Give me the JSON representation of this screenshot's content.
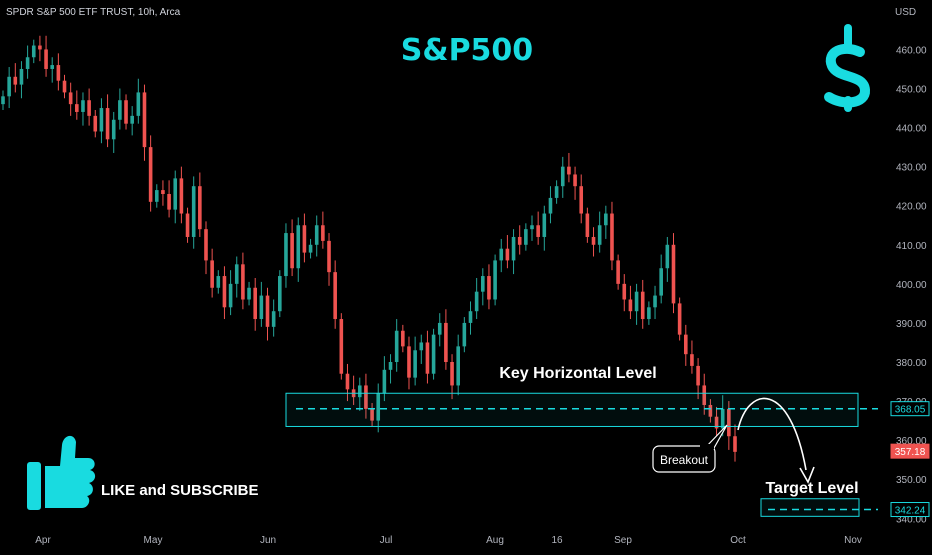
{
  "header": {
    "symbol": "SPDR S&P 500 ETF TRUST, 10h, Arca",
    "currency": "USD"
  },
  "title": "S&P500",
  "annotations": {
    "key_level_label": "Key Horizontal Level",
    "target_label": "Target Level",
    "breakout_label": "Breakout",
    "cta_label": "LIKE and SUBSCRIBE"
  },
  "icons": {
    "dollar": "dollar-icon",
    "thumbs_up": "thumbs-up-icon"
  },
  "colors": {
    "up": "#26a69a",
    "down": "#ef5350",
    "accent": "#19dbe0",
    "background": "#000000",
    "axis_text": "#b2b5be"
  },
  "chart_data": {
    "type": "candlestick",
    "ylim": [
      337,
      466
    ],
    "y_ticks": [
      "460.00",
      "450.00",
      "440.00",
      "430.00",
      "420.00",
      "410.00",
      "400.00",
      "390.00",
      "380.00",
      "370.00",
      "360.00",
      "350.00",
      "340.00"
    ],
    "x_ticks": [
      "Apr",
      "May",
      "Jun",
      "Jul",
      "Aug",
      "16",
      "Sep",
      "Oct",
      "Nov"
    ],
    "price_labels": [
      {
        "value": 368.05,
        "text": "368.05",
        "style": "outline"
      },
      {
        "value": 357.18,
        "text": "357.18",
        "style": "filled"
      },
      {
        "value": 342.24,
        "text": "342.24",
        "style": "outline"
      }
    ],
    "key_level": 368.05,
    "key_zone": [
      363.5,
      372
    ],
    "target_level": 342.24,
    "target_zone": [
      340.5,
      345
    ],
    "breakout_price": 357.18,
    "close_series": [
      448,
      453,
      451,
      455,
      458,
      461,
      460,
      455,
      456,
      452,
      449,
      446,
      444,
      447,
      443,
      439,
      445,
      437,
      442,
      447,
      441,
      443,
      449,
      435,
      421,
      424,
      423,
      419,
      427,
      418,
      412,
      425,
      414,
      406,
      399,
      402,
      394,
      400,
      405,
      396,
      399,
      391,
      397,
      389,
      393,
      402,
      413,
      404,
      415,
      408,
      410,
      415,
      411,
      403,
      391,
      377,
      373,
      371,
      374,
      368,
      365,
      372,
      378,
      380,
      388,
      384,
      376,
      383,
      385,
      377,
      387,
      390,
      380,
      374,
      384,
      390,
      393,
      398,
      402,
      396,
      406,
      409,
      406,
      412,
      410,
      414,
      415,
      412,
      418,
      422,
      425,
      430,
      428,
      425,
      418,
      412,
      410,
      415,
      418,
      406,
      400,
      396,
      393,
      398,
      391,
      394,
      397,
      404,
      410,
      395,
      387,
      382,
      379,
      374,
      369,
      366,
      363,
      368,
      361,
      357
    ]
  }
}
